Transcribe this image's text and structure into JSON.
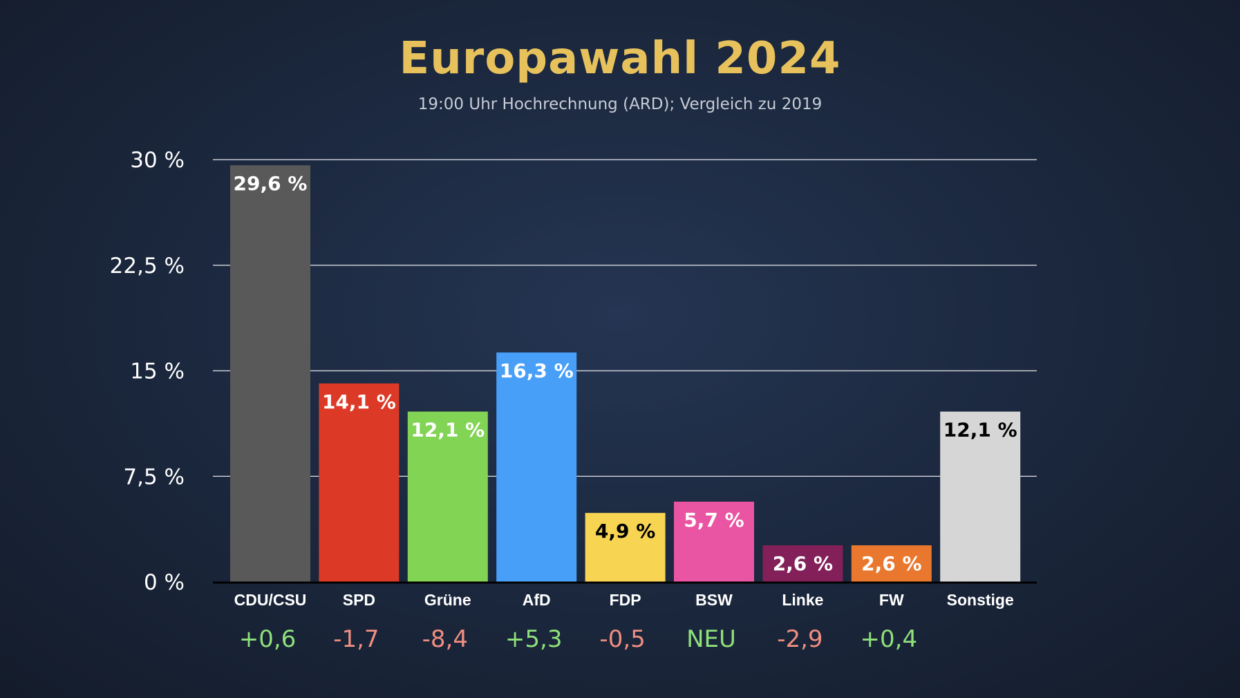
{
  "title": "Europawahl 2024",
  "subtitle": "19:00 Uhr Hochrechnung (ARD); Vergleich zu 2019",
  "chart_data": {
    "type": "bar",
    "title": "Europawahl 2024",
    "subtitle": "19:00 Uhr Hochrechnung (ARD); Vergleich zu 2019",
    "xlabel": "",
    "ylabel": "",
    "ylim": [
      0,
      30
    ],
    "grid": true,
    "yticks": [
      0,
      7.5,
      15,
      22.5,
      30
    ],
    "ytick_labels": [
      "0 %",
      "7,5 %",
      "15 %",
      "22,5 %",
      "30 %"
    ],
    "categories": [
      "CDU/CSU",
      "SPD",
      "Grüne",
      "AfD",
      "FDP",
      "BSW",
      "Linke",
      "FW",
      "Sonstige"
    ],
    "values": [
      29.6,
      14.1,
      12.1,
      16.3,
      4.9,
      5.7,
      2.6,
      2.6,
      12.1
    ],
    "value_labels": [
      "29,6 %",
      "14,1 %",
      "12,1 %",
      "16,3 %",
      "4,9 %",
      "5,7 %",
      "2,6 %",
      "2,6 %",
      "12,1 %"
    ],
    "bar_colors": [
      "#595959",
      "#dc3a26",
      "#82d455",
      "#479ff7",
      "#f7d553",
      "#e955a2",
      "#83205a",
      "#e9782e",
      "#d6d6d6"
    ],
    "value_label_colors": [
      "#ffffff",
      "#ffffff",
      "#ffffff",
      "#ffffff",
      "#000000",
      "#ffffff",
      "#ffffff",
      "#ffffff",
      "#000000"
    ],
    "changes": [
      "+0,6",
      "-1,7",
      "-8,4",
      "+5,3",
      "-0,5",
      "NEU",
      "-2,9",
      "+0,4",
      ""
    ],
    "change_colors": [
      "#8fe07a",
      "#f08e80",
      "#f08e80",
      "#8fe07a",
      "#f08e80",
      "#8fe07a",
      "#f08e80",
      "#8fe07a",
      "#8fe07a"
    ]
  },
  "colors": {
    "title": "#e7c25c",
    "gridline": "#c9ccd3",
    "axis": "#000000",
    "positive": "#8fe07a",
    "negative": "#f08e80"
  }
}
